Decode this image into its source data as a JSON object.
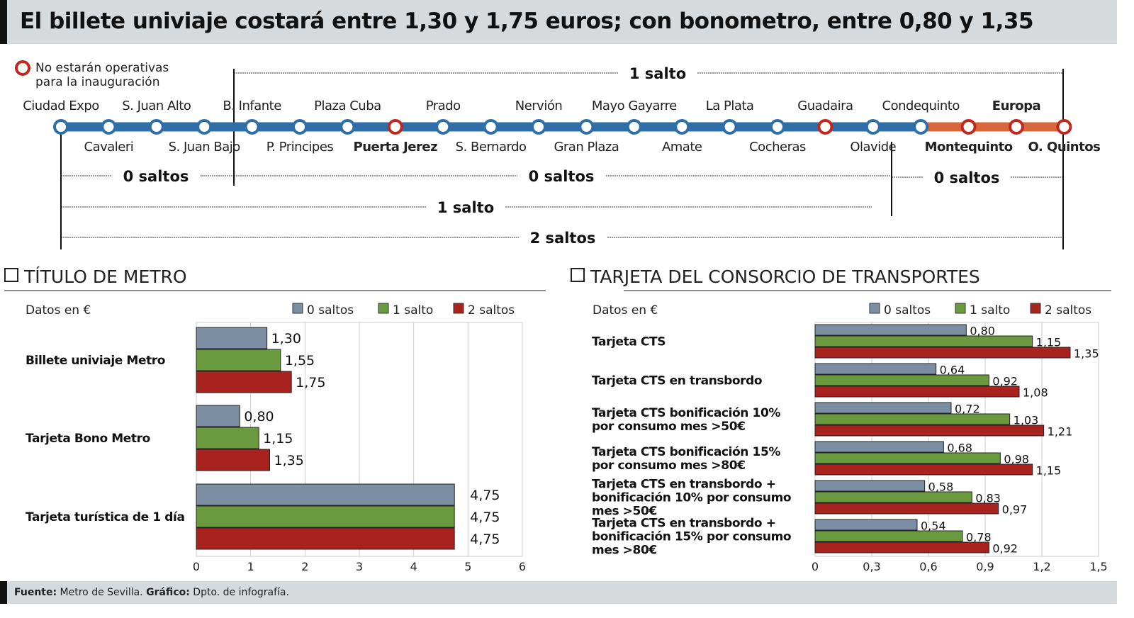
{
  "title": "El billete univiaje costará entre 1,30 y 1,75 euros; con bonometro, entre 0,80 y 1,35",
  "map": {
    "legend": [
      "No estarán operativas",
      "para la inauguración"
    ],
    "colors": {
      "line": "#2f6fa8",
      "line_extension": "#d8673c",
      "closed": "#c0281e"
    },
    "stations": [
      {
        "name": "Ciudad Expo",
        "pos": "above",
        "closed": false,
        "bold": false
      },
      {
        "name": "Cavaleri",
        "pos": "below",
        "closed": false,
        "bold": false
      },
      {
        "name": "S. Juan Alto",
        "pos": "above",
        "closed": false,
        "bold": false
      },
      {
        "name": "S. Juan Bajo",
        "pos": "below",
        "closed": false,
        "bold": false
      },
      {
        "name": "B. Infante",
        "pos": "above",
        "closed": false,
        "bold": false
      },
      {
        "name": "P. Principes",
        "pos": "below",
        "closed": false,
        "bold": false
      },
      {
        "name": "Plaza Cuba",
        "pos": "above",
        "closed": false,
        "bold": false
      },
      {
        "name": "Puerta Jerez",
        "pos": "below",
        "closed": true,
        "bold": true
      },
      {
        "name": "Prado",
        "pos": "above",
        "closed": false,
        "bold": false
      },
      {
        "name": "S. Bernardo",
        "pos": "below",
        "closed": false,
        "bold": false
      },
      {
        "name": "Nervión",
        "pos": "above",
        "closed": false,
        "bold": false
      },
      {
        "name": "Gran Plaza",
        "pos": "below",
        "closed": false,
        "bold": false
      },
      {
        "name": "Mayo Gayarre",
        "pos": "above",
        "closed": false,
        "bold": false
      },
      {
        "name": "Amate",
        "pos": "below",
        "closed": false,
        "bold": false
      },
      {
        "name": "La Plata",
        "pos": "above",
        "closed": false,
        "bold": false
      },
      {
        "name": "Cocheras",
        "pos": "below",
        "closed": false,
        "bold": false
      },
      {
        "name": "Guadaira",
        "pos": "above",
        "closed": true,
        "bold": false
      },
      {
        "name": "Olavide",
        "pos": "below",
        "closed": false,
        "bold": false
      },
      {
        "name": "Condequinto",
        "pos": "above",
        "closed": false,
        "bold": false
      },
      {
        "name": "Montequinto",
        "pos": "below",
        "closed": true,
        "bold": true
      },
      {
        "name": "Europa",
        "pos": "above",
        "closed": true,
        "bold": true
      },
      {
        "name": "O. Quintos",
        "pos": "below",
        "closed": true,
        "bold": true
      }
    ],
    "zones": [
      "1 salto",
      "0 saltos",
      "0 saltos",
      "0 saltos",
      "1 salto",
      "2 saltos"
    ]
  },
  "sections": {
    "metro": "TÍTULO DE METRO",
    "consorcio": "TARJETA DEL CONSORCIO DE TRANSPORTES"
  },
  "footer": {
    "source_label": "Fuente:",
    "source": "Metro de Sevilla.",
    "graphic_label": "Gráfico:",
    "graphic": "Dpto. de infografía."
  },
  "chart_data": [
    {
      "type": "bar",
      "orientation": "horizontal",
      "title": "TÍTULO DE METRO",
      "note": "Datos  en €",
      "categories": [
        "Billete univiaje Metro",
        "Tarjeta Bono Metro",
        "Tarjeta turística de 1 día"
      ],
      "series": [
        {
          "name": "0 saltos",
          "color": "#7b8ea3",
          "values": [
            1.3,
            0.8,
            4.75
          ],
          "labels": [
            "1,30",
            "0,80",
            "4,75"
          ]
        },
        {
          "name": "1 salto",
          "color": "#6a9a3e",
          "values": [
            1.55,
            1.15,
            4.75
          ],
          "labels": [
            "1,55",
            "1,15",
            "4,75"
          ]
        },
        {
          "name": "2 saltos",
          "color": "#a8231e",
          "values": [
            1.75,
            1.35,
            4.75
          ],
          "labels": [
            "1,75",
            "1,35",
            "4,75"
          ]
        }
      ],
      "xlim": [
        0,
        6
      ],
      "xticks": [
        "0",
        "1",
        "2",
        "3",
        "4",
        "5",
        "6"
      ],
      "grid": true,
      "legend": "top-right"
    },
    {
      "type": "bar",
      "orientation": "horizontal",
      "title": "TARJETA DEL CONSORCIO DE TRANSPORTES",
      "note": "Datos en €",
      "categories": [
        "Tarjeta CTS",
        "Tarjeta CTS en transbordo",
        "Tarjeta CTS bonificación 10% por consumo mes >50€",
        "Tarjeta CTS bonificación 15% por consumo mes >80€",
        "Tarjeta CTS en transbordo + bonificación 10% por consumo mes >50€",
        "Tarjeta CTS en transbordo + bonificación 15% por consumo mes >80€"
      ],
      "category_lines": [
        [
          "Tarjeta CTS"
        ],
        [
          "Tarjeta CTS en transbordo"
        ],
        [
          "Tarjeta CTS bonificación 10%",
          "por consumo mes >50€"
        ],
        [
          "Tarjeta CTS bonificación 15%",
          "por consumo mes >80€"
        ],
        [
          "Tarjeta CTS en transbordo +",
          "bonificación 10% por consumo",
          "mes >50€"
        ],
        [
          "Tarjeta CTS en transbordo +",
          "bonificación 15% por consumo",
          "mes >80€"
        ]
      ],
      "series": [
        {
          "name": "0 saltos",
          "color": "#7b8ea3",
          "values": [
            0.8,
            0.64,
            0.72,
            0.68,
            0.58,
            0.54
          ],
          "labels": [
            "0,80",
            "0,64",
            "0,72",
            "0,68",
            "0,58",
            "0,54"
          ]
        },
        {
          "name": "1 salto",
          "color": "#6a9a3e",
          "values": [
            1.15,
            0.92,
            1.03,
            0.98,
            0.83,
            0.78
          ],
          "labels": [
            "1,15",
            "0,92",
            "1,03",
            "0,98",
            "0,83",
            "0,78"
          ]
        },
        {
          "name": "2 saltos",
          "color": "#a8231e",
          "values": [
            1.35,
            1.08,
            1.21,
            1.15,
            0.97,
            0.92
          ],
          "labels": [
            "1,35",
            "1,08",
            "1,21",
            "1,15",
            "0,97",
            "0,92"
          ]
        }
      ],
      "xlim": [
        0,
        1.5
      ],
      "xticks": [
        "0",
        "0,3",
        "0,6",
        "0,9",
        "1,2",
        "1,5"
      ],
      "grid": true,
      "legend": "top-right"
    }
  ]
}
